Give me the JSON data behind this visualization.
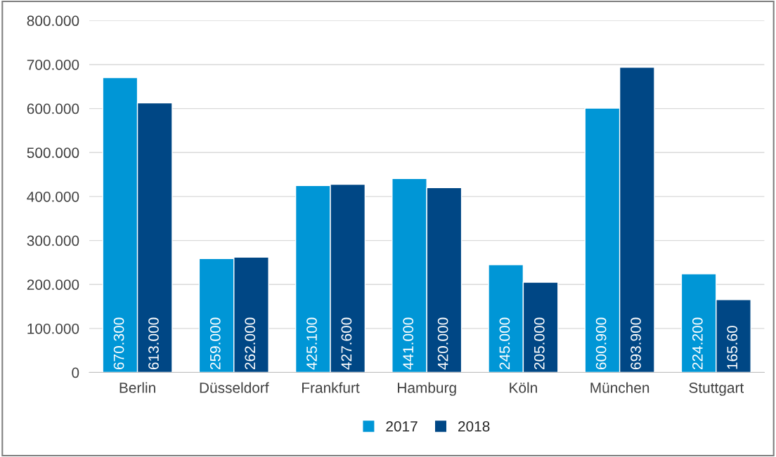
{
  "chart_data": {
    "type": "bar",
    "categories": [
      "Berlin",
      "Düsseldorf",
      "Frankfurt",
      "Hamburg",
      "Köln",
      "München",
      "Stuttgart"
    ],
    "series": [
      {
        "name": "2017",
        "color": "#0096d6",
        "values": [
          670.3,
          259.0,
          425.1,
          441.0,
          245.0,
          600.9,
          224.2
        ],
        "value_labels": [
          "670.300",
          "259.000",
          "425.100",
          "441.000",
          "245.000",
          "600.900",
          "224.200"
        ]
      },
      {
        "name": "2018",
        "color": "#004785",
        "values": [
          613.0,
          262.0,
          427.6,
          420.0,
          205.0,
          693.9,
          165.6
        ],
        "value_labels": [
          "613.000",
          "262.000",
          "427.600",
          "420.000",
          "205.000",
          "693.900",
          "165.60"
        ]
      }
    ],
    "ylim": [
      0,
      800
    ],
    "yticks": [
      0,
      {
        "value": 100,
        "label": "100.000"
      },
      {
        "value": 200,
        "label": "200.000"
      },
      {
        "value": 300,
        "label": "300.000"
      },
      {
        "value": 400,
        "label": "400.000"
      },
      {
        "value": 500,
        "label": "500.000"
      },
      {
        "value": 600,
        "label": "600.000"
      },
      {
        "value": 700,
        "label": "700.000"
      },
      {
        "value": 800,
        "label": "800.000"
      }
    ],
    "grid": "y",
    "legend": "bottom"
  }
}
